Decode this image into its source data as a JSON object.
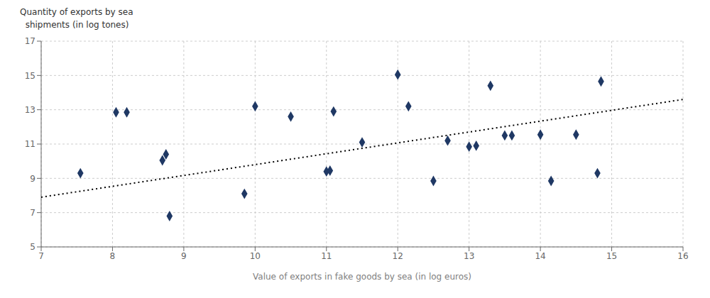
{
  "chart_data": {
    "type": "scatter",
    "xlabel": "Value of exports in fake goods by sea (in log euros)",
    "ylabel": [
      "Quantity of exports by sea",
      "  shipments (in log tones)"
    ],
    "series": [
      {
        "type": "scatter",
        "x": [
          7.55,
          8.05,
          8.2,
          8.7,
          8.75,
          8.8,
          9.85,
          10.0,
          10.5,
          11.0,
          11.05,
          11.1,
          11.5,
          12.0,
          12.15,
          12.5,
          12.7,
          13.0,
          13.1,
          13.3,
          13.5,
          13.6,
          14.0,
          14.15,
          14.5,
          14.8,
          14.85
        ],
        "values": [
          9.3,
          12.85,
          12.85,
          10.05,
          10.4,
          6.8,
          8.1,
          13.2,
          12.6,
          9.4,
          9.45,
          12.9,
          11.1,
          15.05,
          13.2,
          8.85,
          11.2,
          10.85,
          10.9,
          14.4,
          11.5,
          11.5,
          11.55,
          8.85,
          11.55,
          9.3,
          14.65
        ],
        "color": "#1F3864",
        "marker": "diamond"
      },
      {
        "type": "line",
        "x": [
          7.0,
          16.0
        ],
        "values": [
          7.9,
          13.6
        ],
        "color": "black",
        "line_style": "dotted"
      }
    ],
    "xlim": [
      7,
      16
    ],
    "ylim": [
      5,
      17
    ],
    "xticks": [
      7,
      8,
      9,
      10,
      11,
      12,
      13,
      14,
      15,
      16
    ],
    "yticks": [
      5,
      7,
      9,
      11,
      13,
      15,
      17
    ],
    "grid": true
  }
}
